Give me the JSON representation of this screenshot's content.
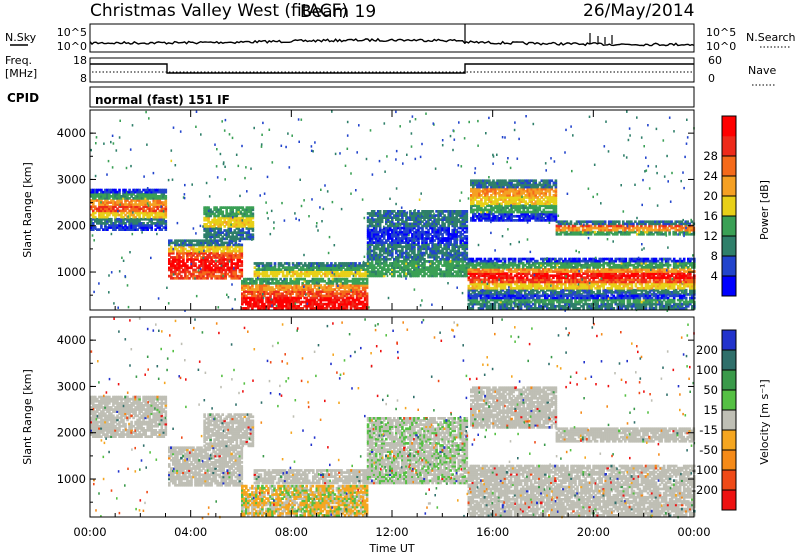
{
  "header": {
    "title": "Christmas Valley West (fitACF)",
    "beam": "Beam 19",
    "date": "26/May/2014"
  },
  "side_labels": {
    "nsky": "N.Sky",
    "nsearch": "N.Search",
    "freq_line1": "Freq.",
    "freq_line2": "[MHz]",
    "nave": "Nave",
    "cpid": "CPID",
    "cpid_value": "normal (fast) 151 IF",
    "noise_left_ticks": [
      "10^5",
      "10^0"
    ],
    "noise_right_ticks": [
      "10^5",
      "10^0"
    ],
    "freq_left_ticks": [
      "18",
      "8"
    ],
    "freq_right_ticks": [
      "60",
      "0"
    ]
  },
  "chart_data": [
    {
      "type": "heatmap",
      "name": "Power",
      "ylabel": "Slant Range [km]",
      "xlabel": "Time UT",
      "x_ticks": [
        "00:00",
        "04:00",
        "08:00",
        "12:00",
        "16:00",
        "20:00",
        "00:00"
      ],
      "y_ticks": [
        1000,
        2000,
        3000,
        4000
      ],
      "xlim_hours": [
        0,
        24
      ],
      "ylim_km": [
        180,
        4500
      ],
      "colorbar": {
        "label": "Power [dB]",
        "ticks": [
          "4",
          "8",
          "12",
          "16",
          "20",
          "24",
          "28"
        ],
        "colors": [
          "#0000ff",
          "#2244cc",
          "#2f7f6a",
          "#3aa055",
          "#e8d018",
          "#f5a023",
          "#f56a1a",
          "#ee2a1a",
          "#ff0000"
        ]
      }
    },
    {
      "type": "heatmap",
      "name": "Velocity",
      "ylabel": "Slant Range [km]",
      "xlabel": "Time UT",
      "x_ticks": [
        "00:00",
        "04:00",
        "08:00",
        "12:00",
        "16:00",
        "20:00",
        "00:00"
      ],
      "y_ticks": [
        1000,
        2000,
        3000,
        4000
      ],
      "xlim_hours": [
        0,
        24
      ],
      "ylim_km": [
        180,
        4500
      ],
      "colorbar": {
        "label": "Velocity [m s⁻¹]",
        "ticks": [
          "200",
          "100",
          "50",
          "15",
          "-15",
          "-50",
          "-100",
          "-200"
        ],
        "colors": [
          "#2233cc",
          "#2f6f6a",
          "#3a9a4a",
          "#55c043",
          "#bfbfb5",
          "#f5a620",
          "#f58a18",
          "#ef4a18",
          "#ee1111"
        ]
      }
    }
  ]
}
